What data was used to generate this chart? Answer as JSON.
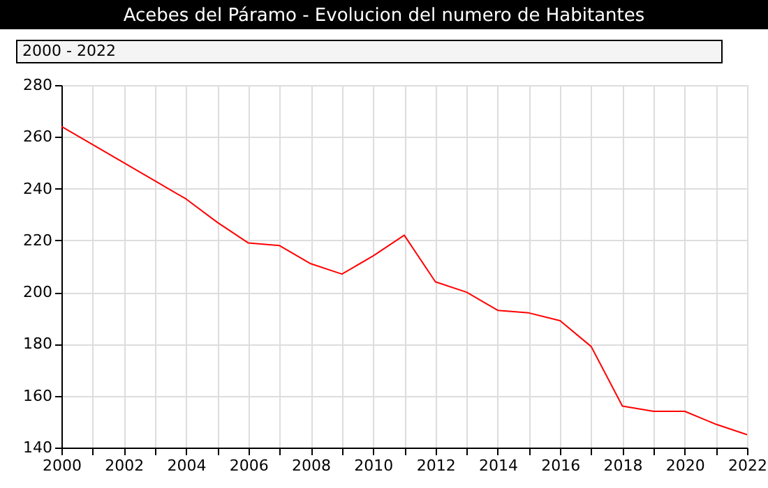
{
  "chart_data": {
    "type": "line",
    "title": "Acebes del Páramo - Evolucion del numero de Habitantes",
    "subtitle": "2000 - 2022",
    "x": [
      2000,
      2001,
      2002,
      2003,
      2004,
      2005,
      2006,
      2007,
      2008,
      2009,
      2010,
      2011,
      2012,
      2013,
      2014,
      2015,
      2016,
      2017,
      2018,
      2019,
      2020,
      2021,
      2022
    ],
    "series": [
      {
        "color": "#ff0000",
        "values": [
          264,
          257,
          250,
          243,
          236,
          227,
          219,
          218,
          211,
          207,
          214,
          222,
          204,
          200,
          193,
          192,
          189,
          179,
          156,
          154,
          154,
          149,
          145
        ]
      }
    ],
    "xlim": [
      2000,
      2022
    ],
    "xticks": [
      2000,
      {
        "value": 2001,
        "label": null
      },
      2002,
      {
        "value": 2003,
        "label": null
      },
      2004,
      {
        "value": 2005,
        "label": null
      },
      2006,
      {
        "value": 2007,
        "label": null
      },
      2008,
      {
        "value": 2009,
        "label": null
      },
      2010,
      {
        "value": 2011,
        "label": null
      },
      2012,
      {
        "value": 2013,
        "label": null
      },
      2014,
      {
        "value": 2015,
        "label": null
      },
      2016,
      {
        "value": 2017,
        "label": null
      },
      2018,
      {
        "value": 2019,
        "label": null
      },
      2020,
      {
        "value": 2021,
        "label": null
      },
      2022
    ],
    "ylim": [
      140,
      280
    ],
    "yticks": [
      140,
      160,
      180,
      200,
      220,
      240,
      260,
      280
    ],
    "grid": true,
    "marker": "none",
    "line_style": "solid"
  }
}
